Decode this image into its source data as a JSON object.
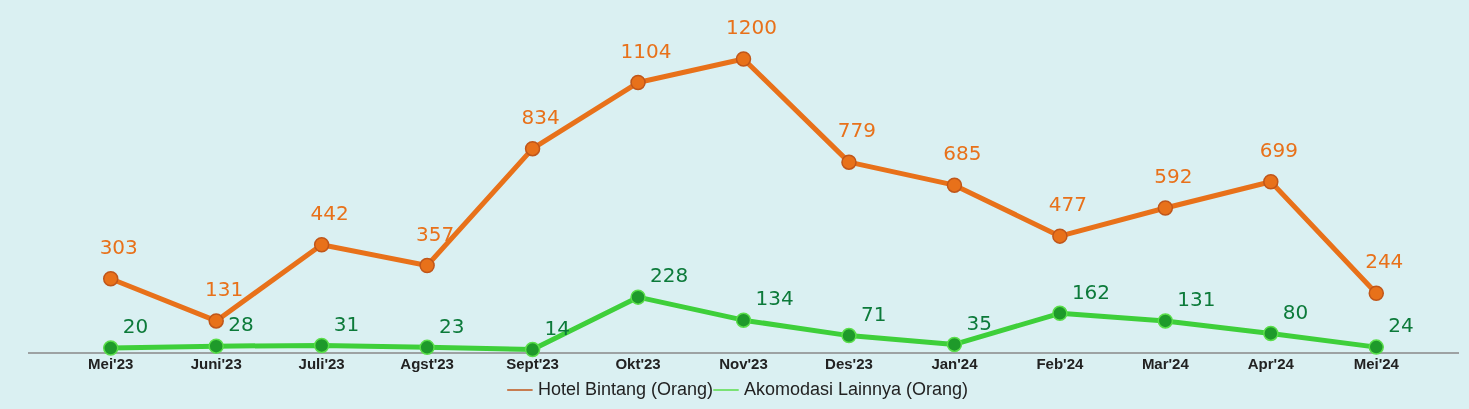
{
  "chart_data": {
    "type": "line",
    "categories": [
      "Mei'23",
      "Juni'23",
      "Juli'23",
      "Agst'23",
      "Sept'23",
      "Okt'23",
      "Nov'23",
      "Des'23",
      "Jan'24",
      "Feb'24",
      "Mar'24",
      "Apr'24",
      "Mei'24"
    ],
    "series": [
      {
        "name": "Hotel Bintang (Orang)",
        "color": "#e8711a",
        "values": [
          303,
          131,
          442,
          357,
          834,
          1104,
          1200,
          779,
          685,
          477,
          592,
          699,
          244
        ]
      },
      {
        "name": "Akomodasi Lainnya (Orang)",
        "color": "#3ecf3a",
        "values": [
          20,
          28,
          31,
          23,
          14,
          228,
          134,
          71,
          35,
          162,
          131,
          80,
          24
        ]
      }
    ],
    "tick_labels": "x",
    "grid": false,
    "legend": "bottom",
    "marker": "circle",
    "line_style": "solid",
    "data_labels": true
  }
}
